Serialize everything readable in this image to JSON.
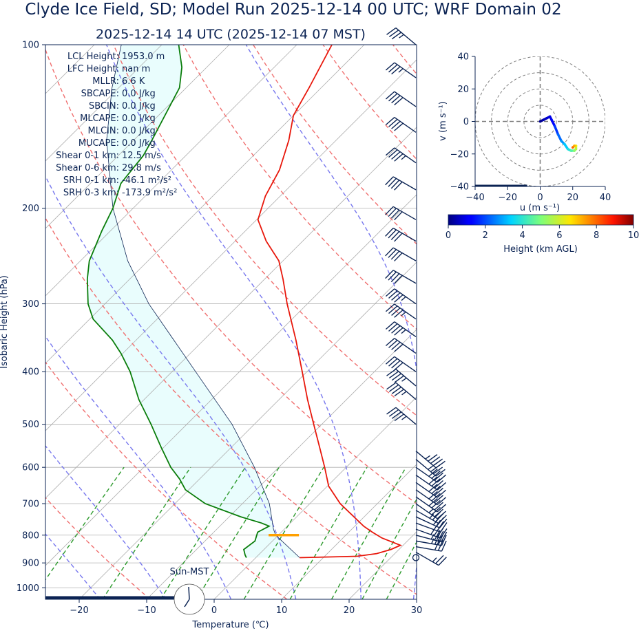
{
  "title": "Clyde Ice Field, SD; Model Run 2025-12-14 00 UTC; WRF Domain 02",
  "subtitle": "2025-12-14 14 UTC  (2025-12-14 07 MST)",
  "colors": {
    "text": "#0b2353",
    "temperature": "#e8170b",
    "dewpoint": "#0a7d0a",
    "dry_adiabat": "#f07070",
    "moist_adiabat": "#7777ee",
    "mixing_ratio": "#2c9a2c",
    "cape_fill": "#e9fdfd",
    "lcl_marker": "#ffa000",
    "isobar": "#b0b0b0"
  },
  "indices": {
    "labels": [
      "LCL Height:",
      "LFC Height:",
      "MLLR:",
      "SBCAPE:",
      "SBCIN:",
      "MLCAPE:",
      "MLCIN:",
      "MUCAPE:",
      "Shear 0-1 km:",
      "Shear 0-6 km:",
      "SRH 0-1 km:",
      "SRH 0-3 km:"
    ],
    "values": [
      "1953.0 m",
      "nan m",
      "6.6 K",
      "0.0 J/kg",
      "0.0 J/kg",
      "0.0 J/kg",
      "0.0 J/kg",
      "0.0 J/kg",
      "12.5 m/s",
      "29.8 m/s",
      "-46.1 m²/s²",
      "-173.9 m²/s²"
    ]
  },
  "sun_label": "Sun-MST",
  "chart_data": [
    {
      "type": "line",
      "name": "skew-t",
      "xlabel": "Temperature (℃)",
      "ylabel": "Isobaric Height (hPa)",
      "xlim": [
        -25,
        30
      ],
      "ylim_hpa": [
        1050,
        100
      ],
      "x_ticks": [
        -20,
        -10,
        0,
        10,
        20,
        30
      ],
      "y_ticks": [
        100,
        200,
        300,
        400,
        500,
        600,
        700,
        800,
        900,
        1000
      ],
      "y_scale": "log",
      "skew": 45,
      "grid": true,
      "series": [
        {
          "key": "temperature",
          "points": [
            [
              880,
              6.5
            ],
            [
              875,
              14.8
            ],
            [
              865,
              17.3
            ],
            [
              850,
              18.8
            ],
            [
              835,
              19.6
            ],
            [
              810,
              15.8
            ],
            [
              790,
              13.5
            ],
            [
              770,
              11.3
            ],
            [
              700,
              4.5
            ],
            [
              650,
              0.2
            ],
            [
              600,
              -3.2
            ],
            [
              550,
              -7.0
            ],
            [
              500,
              -11.2
            ],
            [
              450,
              -15.8
            ],
            [
              400,
              -20.7
            ],
            [
              350,
              -26.3
            ],
            [
              300,
              -33.0
            ],
            [
              270,
              -37.3
            ],
            [
              250,
              -40.6
            ],
            [
              230,
              -45.4
            ],
            [
              210,
              -49.8
            ],
            [
              190,
              -52.2
            ],
            [
              170,
              -54.0
            ],
            [
              150,
              -57.0
            ],
            [
              135,
              -60.0
            ],
            [
              120,
              -61.8
            ],
            [
              100,
              -64.8
            ]
          ]
        },
        {
          "key": "dewpoint",
          "points": [
            [
              880,
              -1.4
            ],
            [
              870,
              -2.0
            ],
            [
              850,
              -3.0
            ],
            [
              820,
              -2.6
            ],
            [
              790,
              -3.5
            ],
            [
              770,
              -2.7
            ],
            [
              760,
              -4.3
            ],
            [
              740,
              -8.3
            ],
            [
              700,
              -15.5
            ],
            [
              660,
              -20.5
            ],
            [
              630,
              -23.0
            ],
            [
              600,
              -26.0
            ],
            [
              550,
              -30.5
            ],
            [
              500,
              -35.3
            ],
            [
              450,
              -40.8
            ],
            [
              400,
              -46.2
            ],
            [
              370,
              -50.3
            ],
            [
              350,
              -53.5
            ],
            [
              320,
              -59.5
            ],
            [
              300,
              -62.5
            ],
            [
              270,
              -66.3
            ],
            [
              250,
              -68.7
            ],
            [
              220,
              -71.3
            ],
            [
              200,
              -73.0
            ],
            [
              180,
              -75.5
            ],
            [
              160,
              -76.3
            ],
            [
              150,
              -77.3
            ],
            [
              120,
              -81.0
            ],
            [
              110,
              -83.7
            ],
            [
              100,
              -87.5
            ]
          ]
        }
      ],
      "parcel": [
        [
          880,
          6.5
        ],
        [
          800,
          -0.4
        ],
        [
          780,
          -1.6
        ],
        [
          700,
          -6.0
        ],
        [
          600,
          -13.6
        ],
        [
          500,
          -23.3
        ],
        [
          400,
          -36.5
        ],
        [
          300,
          -53.5
        ],
        [
          250,
          -63.0
        ],
        [
          200,
          -73.0
        ],
        [
          150,
          -84.0
        ],
        [
          120,
          -91.0
        ],
        [
          100,
          -96.0
        ]
      ],
      "lcl": {
        "p": 800,
        "t": 0.8
      },
      "dry_adiabats_theta_k": [
        220,
        240,
        260,
        280,
        300,
        320,
        340,
        360,
        380,
        400,
        420,
        440,
        460,
        480
      ],
      "moist_adiabats_thetaw_c": [
        -20,
        -10,
        0,
        10,
        20,
        28
      ],
      "mixing_ratios_gkg": [
        0.4,
        1,
        2,
        3,
        5,
        8,
        12,
        16,
        20
      ],
      "wind_barbs": [
        {
          "p": 880,
          "speed_kt": 3,
          "dir": 270,
          "calm": true
        },
        {
          "p": 860,
          "speed_kt": 25,
          "dir": 120
        },
        {
          "p": 840,
          "speed_kt": 30,
          "dir": 100
        },
        {
          "p": 820,
          "speed_kt": 35,
          "dir": 100
        },
        {
          "p": 800,
          "speed_kt": 35,
          "dir": 105
        },
        {
          "p": 780,
          "speed_kt": 35,
          "dir": 110
        },
        {
          "p": 760,
          "speed_kt": 30,
          "dir": 110
        },
        {
          "p": 740,
          "speed_kt": 30,
          "dir": 115
        },
        {
          "p": 720,
          "speed_kt": 35,
          "dir": 120
        },
        {
          "p": 700,
          "speed_kt": 35,
          "dir": 125
        },
        {
          "p": 680,
          "speed_kt": 40,
          "dir": 125
        },
        {
          "p": 660,
          "speed_kt": 40,
          "dir": 125
        },
        {
          "p": 640,
          "speed_kt": 40,
          "dir": 125
        },
        {
          "p": 620,
          "speed_kt": 40,
          "dir": 125
        },
        {
          "p": 600,
          "speed_kt": 40,
          "dir": 125
        },
        {
          "p": 580,
          "speed_kt": 40,
          "dir": 130
        },
        {
          "p": 560,
          "speed_kt": 45,
          "dir": 130
        },
        {
          "p": 500,
          "speed_kt": 45,
          "dir": 310
        },
        {
          "p": 450,
          "speed_kt": 45,
          "dir": 310
        },
        {
          "p": 425,
          "speed_kt": 45,
          "dir": 310
        },
        {
          "p": 400,
          "speed_kt": 40,
          "dir": 305
        },
        {
          "p": 370,
          "speed_kt": 40,
          "dir": 305
        },
        {
          "p": 345,
          "speed_kt": 45,
          "dir": 305
        },
        {
          "p": 320,
          "speed_kt": 45,
          "dir": 305
        },
        {
          "p": 300,
          "speed_kt": 45,
          "dir": 305
        },
        {
          "p": 275,
          "speed_kt": 40,
          "dir": 300
        },
        {
          "p": 250,
          "speed_kt": 40,
          "dir": 300
        },
        {
          "p": 230,
          "speed_kt": 40,
          "dir": 300
        },
        {
          "p": 210,
          "speed_kt": 40,
          "dir": 300
        },
        {
          "p": 185,
          "speed_kt": 40,
          "dir": 300
        },
        {
          "p": 165,
          "speed_kt": 45,
          "dir": 305
        },
        {
          "p": 145,
          "speed_kt": 40,
          "dir": 305
        },
        {
          "p": 130,
          "speed_kt": 40,
          "dir": 305
        },
        {
          "p": 115,
          "speed_kt": 35,
          "dir": 305
        },
        {
          "p": 100,
          "speed_kt": 35,
          "dir": 310
        }
      ]
    },
    {
      "type": "scatter",
      "name": "hodograph",
      "xlabel": "u (m s⁻¹)",
      "ylabel": "v (m s⁻¹)",
      "xlim": [
        -40,
        40
      ],
      "ylim": [
        -40,
        40
      ],
      "x_ticks": [
        -40,
        -20,
        0,
        20,
        40
      ],
      "y_ticks": [
        -40,
        -20,
        0,
        20,
        40
      ],
      "ring_radii": [
        10,
        20,
        30,
        40
      ],
      "points": [
        [
          0,
          0,
          0.2
        ],
        [
          2,
          1,
          0.5
        ],
        [
          4,
          2,
          0.8
        ],
        [
          6,
          3,
          1.0
        ],
        [
          7,
          1,
          1.3
        ],
        [
          9,
          -3,
          1.8
        ],
        [
          11,
          -8,
          2.3
        ],
        [
          13,
          -12,
          2.8
        ],
        [
          15,
          -14,
          3.3
        ],
        [
          17,
          -17,
          3.8
        ],
        [
          19,
          -18,
          4.5
        ],
        [
          21,
          -18,
          5.2
        ],
        [
          22,
          -17,
          5.8
        ],
        [
          22,
          -15,
          6.5
        ],
        [
          21,
          -15,
          7.2
        ],
        [
          20,
          -16,
          8.0
        ]
      ],
      "colorbar": {
        "label": "Height (km AGL)",
        "ticks": [
          0,
          2,
          4,
          6,
          8,
          10
        ],
        "range": [
          0,
          10
        ]
      }
    }
  ]
}
